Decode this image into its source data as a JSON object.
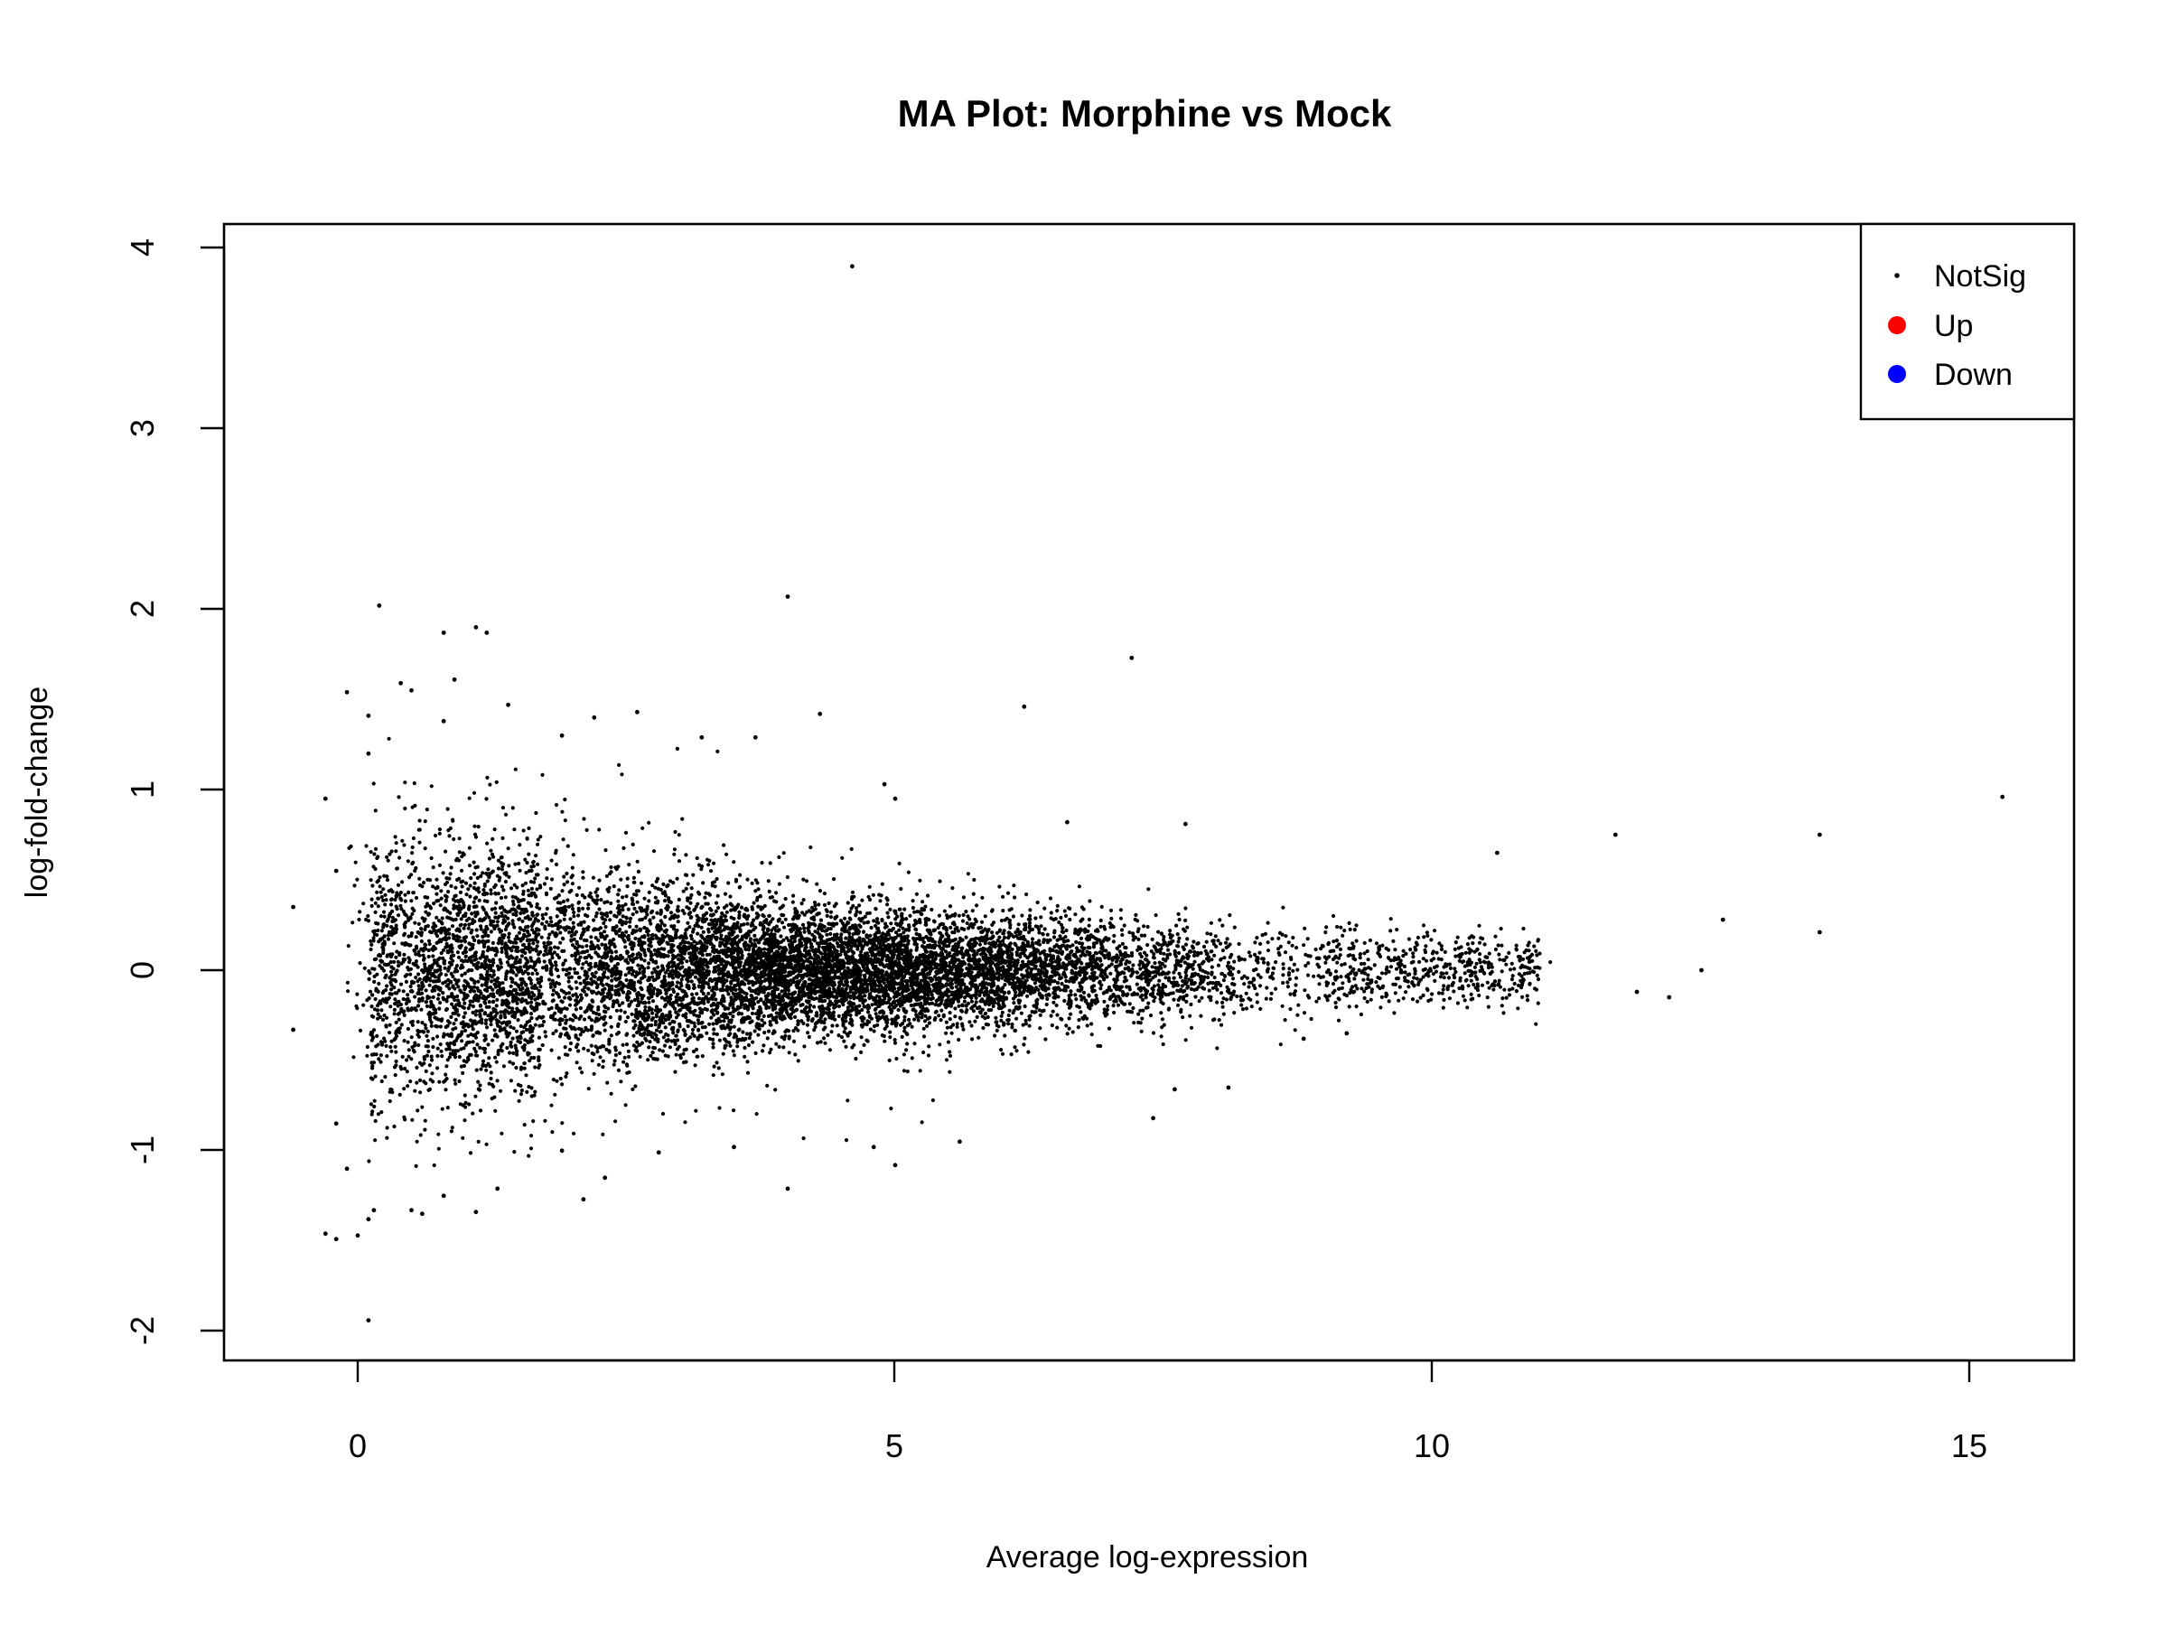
{
  "colors": {
    "notsig": "#000000",
    "up": "#ff0000",
    "down": "#0000ff"
  },
  "chart_data": {
    "type": "scatter",
    "title": "MA Plot: Morphine vs Mock",
    "xlabel": "Average log-expression",
    "ylabel": "log-fold-change",
    "xlim": [
      -1.25,
      15.95
    ],
    "ylim": [
      -2.15,
      4.15
    ],
    "xticks": [
      0,
      5,
      10,
      15
    ],
    "xtick_labels": [
      "0",
      "5",
      "10",
      "15"
    ],
    "yticks": [
      -2,
      -1,
      0,
      1,
      2,
      3,
      4
    ],
    "ytick_labels": [
      "-2",
      "-1",
      "0",
      "1",
      "2",
      "3",
      "4"
    ],
    "grid": false,
    "legend": {
      "placement": "top-right",
      "entries": [
        {
          "label": "NotSig",
          "color": "#000000",
          "marker": "small-dot"
        },
        {
          "label": "Up",
          "color": "#ff0000",
          "marker": "dot"
        },
        {
          "label": "Down",
          "color": "#0000ff",
          "marker": "dot"
        }
      ]
    },
    "series": [
      {
        "name": "NotSig",
        "color": "#000000",
        "note": "About 10,000 genes form a dense cloud centred near y = 0, widest at low expression and narrowing toward high expression; only the individually distinguishable outlying points are listed in points.",
        "cloud_profile": [
          {
            "x": 0.5,
            "sd": 0.38
          },
          {
            "x": 2.0,
            "sd": 0.3
          },
          {
            "x": 4.0,
            "sd": 0.18
          },
          {
            "x": 6.0,
            "sd": 0.15
          },
          {
            "x": 8.0,
            "sd": 0.13
          },
          {
            "x": 10.0,
            "sd": 0.1
          }
        ],
        "points": [
          [
            4.6,
            3.9
          ],
          [
            4.0,
            2.07
          ],
          [
            0.2,
            2.02
          ],
          [
            0.8,
            1.87
          ],
          [
            1.1,
            1.9
          ],
          [
            1.2,
            1.87
          ],
          [
            7.2,
            1.73
          ],
          [
            0.9,
            1.61
          ],
          [
            0.4,
            1.59
          ],
          [
            0.5,
            1.55
          ],
          [
            -0.1,
            1.54
          ],
          [
            1.4,
            1.47
          ],
          [
            6.2,
            1.46
          ],
          [
            0.1,
            1.41
          ],
          [
            2.6,
            1.43
          ],
          [
            4.3,
            1.42
          ],
          [
            3.2,
            1.29
          ],
          [
            3.7,
            1.29
          ],
          [
            0.1,
            1.2
          ],
          [
            0.8,
            1.38
          ],
          [
            2.2,
            1.4
          ],
          [
            1.9,
            1.3
          ],
          [
            5.0,
            0.95
          ],
          [
            4.9,
            1.03
          ],
          [
            6.6,
            0.82
          ],
          [
            7.7,
            0.81
          ],
          [
            10.6,
            0.65
          ],
          [
            11.7,
            0.75
          ],
          [
            13.6,
            0.75
          ],
          [
            15.3,
            0.96
          ],
          [
            12.7,
            0.28
          ],
          [
            13.6,
            0.21
          ],
          [
            12.5,
            0.0
          ],
          [
            11.9,
            -0.12
          ],
          [
            12.2,
            -0.15
          ],
          [
            -0.6,
            0.35
          ],
          [
            -0.3,
            0.95
          ],
          [
            -0.2,
            0.55
          ],
          [
            -0.6,
            -0.33
          ],
          [
            -0.2,
            -0.85
          ],
          [
            -0.1,
            -1.1
          ],
          [
            -0.3,
            -1.46
          ],
          [
            -0.2,
            -1.49
          ],
          [
            0.0,
            -1.47
          ],
          [
            0.1,
            -1.38
          ],
          [
            0.15,
            -1.33
          ],
          [
            0.1,
            -1.94
          ],
          [
            0.5,
            -1.33
          ],
          [
            0.6,
            -1.35
          ],
          [
            0.8,
            -1.25
          ],
          [
            1.1,
            -1.34
          ],
          [
            1.3,
            -1.21
          ],
          [
            2.1,
            -1.27
          ],
          [
            2.3,
            -1.15
          ],
          [
            4.0,
            -1.21
          ],
          [
            5.0,
            -1.08
          ],
          [
            4.8,
            -0.98
          ],
          [
            5.6,
            -0.95
          ],
          [
            7.4,
            -0.82
          ],
          [
            7.6,
            -0.66
          ],
          [
            8.1,
            -0.65
          ],
          [
            8.8,
            -0.38
          ],
          [
            9.2,
            -0.35
          ],
          [
            2.8,
            -1.01
          ],
          [
            1.9,
            -1.0
          ],
          [
            3.5,
            -0.98
          ]
        ]
      },
      {
        "name": "Up",
        "color": "#ff0000",
        "points": []
      },
      {
        "name": "Down",
        "color": "#0000ff",
        "points": []
      }
    ]
  }
}
